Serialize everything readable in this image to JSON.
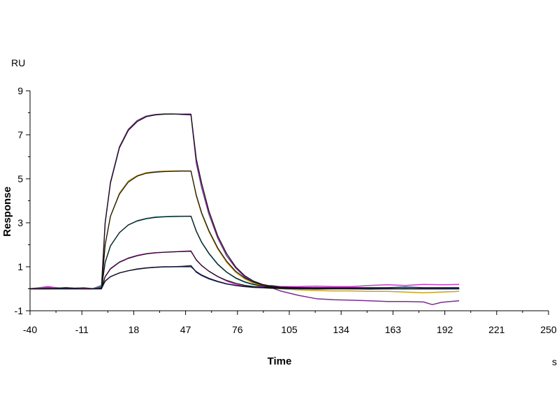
{
  "chart_data": {
    "type": "line",
    "xlabel": "Time",
    "ylabel": "Response",
    "x_unit": "s",
    "y_unit": "RU",
    "xlim": [
      -40,
      250
    ],
    "ylim": [
      -1,
      9
    ],
    "x_ticks": [
      -40,
      -11,
      18,
      47,
      76,
      105,
      134,
      163,
      192,
      221,
      250
    ],
    "y_ticks": [
      -1,
      1,
      3,
      5,
      7,
      9
    ],
    "grid": false,
    "legend": "none",
    "series": [
      {
        "color": "#7b2d8e",
        "x": [
          -40,
          -30,
          -20,
          -10,
          -5,
          0,
          2,
          5,
          10,
          15,
          20,
          25,
          30,
          35,
          40,
          45,
          50,
          53,
          56,
          60,
          65,
          70,
          75,
          80,
          85,
          90,
          95,
          100,
          110,
          120,
          130,
          140,
          150,
          160,
          170,
          180,
          185,
          190,
          195,
          200
        ],
        "y": [
          0.0,
          0.05,
          0.0,
          0.0,
          0.0,
          0.15,
          3.0,
          4.85,
          6.45,
          7.25,
          7.65,
          7.85,
          7.92,
          7.95,
          7.95,
          7.92,
          7.9,
          5.7,
          4.6,
          3.4,
          2.3,
          1.5,
          0.95,
          0.55,
          0.3,
          0.15,
          0.05,
          -0.1,
          -0.3,
          -0.45,
          -0.5,
          -0.52,
          -0.55,
          -0.58,
          -0.58,
          -0.6,
          -0.72,
          -0.62,
          -0.58,
          -0.55
        ]
      },
      {
        "color": "#c9a227",
        "x": [
          -40,
          -30,
          -20,
          -10,
          -5,
          0,
          2,
          5,
          10,
          15,
          20,
          25,
          30,
          35,
          40,
          45,
          50,
          53,
          56,
          60,
          65,
          70,
          75,
          80,
          85,
          90,
          95,
          100,
          110,
          120,
          130,
          140,
          150,
          160,
          170,
          180,
          190,
          200
        ],
        "y": [
          0.0,
          0.0,
          0.05,
          0.0,
          0.0,
          0.1,
          2.0,
          3.3,
          4.35,
          4.9,
          5.15,
          5.28,
          5.33,
          5.35,
          5.36,
          5.36,
          5.35,
          4.2,
          3.4,
          2.6,
          1.8,
          1.2,
          0.75,
          0.45,
          0.25,
          0.12,
          0.05,
          0.0,
          -0.05,
          -0.08,
          -0.1,
          -0.1,
          -0.12,
          -0.12,
          -0.15,
          -0.18,
          -0.15,
          -0.12
        ]
      },
      {
        "color": "#1fa3a3",
        "x": [
          -40,
          -30,
          -20,
          -10,
          -5,
          0,
          2,
          5,
          10,
          15,
          20,
          25,
          30,
          35,
          40,
          45,
          50,
          53,
          56,
          60,
          65,
          70,
          75,
          80,
          85,
          90,
          95,
          100,
          110,
          120,
          130,
          140,
          150,
          160,
          170,
          180,
          190,
          200
        ],
        "y": [
          0.0,
          0.0,
          0.0,
          0.05,
          0.0,
          0.1,
          1.2,
          1.95,
          2.55,
          2.9,
          3.1,
          3.2,
          3.26,
          3.28,
          3.3,
          3.3,
          3.3,
          2.6,
          2.1,
          1.6,
          1.1,
          0.75,
          0.48,
          0.3,
          0.18,
          0.1,
          0.05,
          0.02,
          0.0,
          -0.02,
          0.0,
          0.0,
          -0.02,
          0.0,
          0.02,
          0.0,
          0.0,
          0.02
        ]
      },
      {
        "color": "#c83cc8",
        "x": [
          -40,
          -30,
          -20,
          -10,
          -5,
          0,
          2,
          5,
          10,
          15,
          20,
          25,
          30,
          35,
          40,
          45,
          50,
          53,
          56,
          60,
          65,
          70,
          75,
          80,
          85,
          90,
          95,
          100,
          110,
          120,
          130,
          140,
          150,
          160,
          170,
          180,
          190,
          200
        ],
        "y": [
          0.0,
          0.1,
          0.0,
          0.05,
          0.0,
          0.05,
          0.55,
          0.92,
          1.22,
          1.4,
          1.52,
          1.6,
          1.64,
          1.66,
          1.68,
          1.7,
          1.72,
          1.3,
          1.05,
          0.8,
          0.55,
          0.35,
          0.2,
          0.12,
          0.08,
          0.1,
          0.15,
          0.1,
          0.1,
          0.12,
          0.1,
          0.1,
          0.15,
          0.18,
          0.15,
          0.2,
          0.18,
          0.2
        ]
      },
      {
        "color": "#1e2a8c",
        "x": [
          -40,
          -30,
          -20,
          -10,
          -5,
          0,
          2,
          5,
          10,
          15,
          20,
          25,
          30,
          35,
          40,
          45,
          50,
          53,
          56,
          60,
          65,
          70,
          75,
          80,
          85,
          90,
          95,
          100,
          110,
          120,
          130,
          140,
          150,
          160,
          170,
          180,
          190,
          200
        ],
        "y": [
          0.0,
          0.0,
          0.05,
          0.0,
          0.0,
          0.05,
          0.35,
          0.55,
          0.72,
          0.82,
          0.9,
          0.95,
          0.98,
          1.0,
          1.0,
          1.02,
          1.05,
          0.75,
          0.6,
          0.45,
          0.32,
          0.22,
          0.15,
          0.1,
          0.08,
          0.06,
          0.05,
          0.05,
          0.05,
          0.05,
          0.05,
          0.05,
          0.05,
          0.05,
          0.08,
          0.05,
          0.05,
          0.05
        ]
      },
      {
        "color": "#111111",
        "x": [
          -40,
          -30,
          -20,
          -10,
          -5,
          0,
          2,
          5,
          10,
          15,
          20,
          25,
          30,
          35,
          40,
          45,
          50,
          53,
          56,
          60,
          65,
          70,
          75,
          80,
          85,
          90,
          95,
          100,
          110,
          120,
          130,
          140,
          150,
          160,
          170,
          180,
          190,
          200
        ],
        "y": [
          0.0,
          0.0,
          0.0,
          0.0,
          0.0,
          0.0,
          3.0,
          4.8,
          6.4,
          7.2,
          7.6,
          7.82,
          7.9,
          7.93,
          7.94,
          7.94,
          7.94,
          5.9,
          4.8,
          3.55,
          2.4,
          1.6,
          1.0,
          0.6,
          0.35,
          0.2,
          0.12,
          0.08,
          0.05,
          0.03,
          0.02,
          0.02,
          0.01,
          0.01,
          0.0,
          0.0,
          0.0,
          0.0
        ]
      },
      {
        "color": "#111111",
        "x": [
          -40,
          -30,
          -20,
          -10,
          -5,
          0,
          2,
          5,
          10,
          15,
          20,
          25,
          30,
          35,
          40,
          45,
          50,
          53,
          56,
          60,
          65,
          70,
          75,
          80,
          85,
          90,
          95,
          100,
          110,
          120,
          130,
          140,
          150,
          160,
          170,
          180,
          190,
          200
        ],
        "y": [
          0.0,
          0.0,
          0.0,
          0.0,
          0.0,
          0.0,
          2.0,
          3.3,
          4.3,
          4.85,
          5.12,
          5.25,
          5.3,
          5.33,
          5.34,
          5.35,
          5.35,
          4.25,
          3.45,
          2.65,
          1.85,
          1.25,
          0.8,
          0.5,
          0.3,
          0.18,
          0.1,
          0.06,
          0.03,
          0.02,
          0.01,
          0.0,
          0.0,
          0.0,
          0.0,
          0.0,
          0.0,
          0.0
        ]
      },
      {
        "color": "#111111",
        "x": [
          -40,
          -30,
          -20,
          -10,
          -5,
          0,
          2,
          5,
          10,
          15,
          20,
          25,
          30,
          35,
          40,
          45,
          50,
          53,
          56,
          60,
          65,
          70,
          75,
          80,
          85,
          90,
          95,
          100,
          110,
          120,
          130,
          140,
          150,
          160,
          170,
          180,
          190,
          200
        ],
        "y": [
          0.0,
          0.0,
          0.0,
          0.0,
          0.0,
          0.0,
          1.2,
          1.95,
          2.55,
          2.9,
          3.08,
          3.18,
          3.24,
          3.27,
          3.28,
          3.29,
          3.3,
          2.62,
          2.12,
          1.62,
          1.12,
          0.76,
          0.5,
          0.32,
          0.2,
          0.12,
          0.07,
          0.04,
          0.02,
          0.01,
          0.0,
          0.0,
          0.0,
          0.0,
          0.0,
          0.0,
          0.0,
          0.0
        ]
      },
      {
        "color": "#111111",
        "x": [
          -40,
          -30,
          -20,
          -10,
          -5,
          0,
          2,
          5,
          10,
          15,
          20,
          25,
          30,
          35,
          40,
          45,
          50,
          53,
          56,
          60,
          65,
          70,
          75,
          80,
          85,
          90,
          95,
          100,
          110,
          120,
          130,
          140,
          150,
          160,
          170,
          180,
          190,
          200
        ],
        "y": [
          0.0,
          0.0,
          0.0,
          0.0,
          0.0,
          0.0,
          0.55,
          0.9,
          1.2,
          1.38,
          1.5,
          1.58,
          1.63,
          1.66,
          1.68,
          1.69,
          1.7,
          1.32,
          1.06,
          0.8,
          0.56,
          0.38,
          0.25,
          0.16,
          0.1,
          0.06,
          0.04,
          0.02,
          0.01,
          0.0,
          0.0,
          0.0,
          0.0,
          0.0,
          0.0,
          0.0,
          0.0,
          0.0
        ]
      },
      {
        "color": "#111111",
        "x": [
          -40,
          -30,
          -20,
          -10,
          -5,
          0,
          2,
          5,
          10,
          15,
          20,
          25,
          30,
          35,
          40,
          45,
          50,
          53,
          56,
          60,
          65,
          70,
          75,
          80,
          85,
          90,
          95,
          100,
          110,
          120,
          130,
          140,
          150,
          160,
          170,
          180,
          190,
          200
        ],
        "y": [
          0.0,
          0.0,
          0.0,
          0.0,
          0.0,
          0.0,
          0.35,
          0.55,
          0.72,
          0.82,
          0.89,
          0.94,
          0.97,
          0.99,
          1.0,
          1.0,
          1.0,
          0.78,
          0.63,
          0.48,
          0.34,
          0.23,
          0.15,
          0.1,
          0.06,
          0.04,
          0.02,
          0.01,
          0.0,
          0.0,
          0.0,
          0.0,
          0.0,
          0.0,
          0.0,
          0.0,
          0.0,
          0.0
        ]
      }
    ]
  }
}
